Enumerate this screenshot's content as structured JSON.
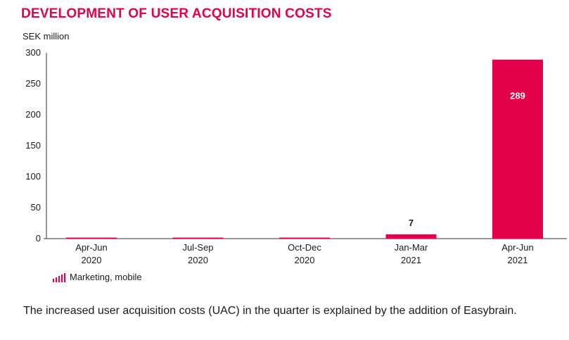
{
  "title": "DEVELOPMENT OF USER ACQUISITION COSTS",
  "unit_label": "SEK million",
  "colors": {
    "accent": "#e5004b",
    "text": "#1a1a1a",
    "axis": "#333333"
  },
  "legend": {
    "icon": "bar-chart-icon",
    "label": "Marketing, mobile"
  },
  "caption": "The increased user acquisition costs (UAC) in the quarter is explained by the addition of Easybrain.",
  "chart_data": {
    "type": "bar",
    "categories": [
      [
        "Apr-Jun",
        "2020"
      ],
      [
        "Jul-Sep",
        "2020"
      ],
      [
        "Oct-Dec",
        "2020"
      ],
      [
        "Jan-Mar",
        "2021"
      ],
      [
        "Apr-Jun",
        "2021"
      ]
    ],
    "series": [
      {
        "name": "Marketing, mobile",
        "values": [
          0,
          0,
          0,
          7,
          289
        ],
        "labels": [
          "",
          "",
          "",
          "7",
          "289"
        ]
      }
    ],
    "ylabel": "SEK million",
    "ylim": [
      0,
      300
    ],
    "yticks": [
      0,
      50,
      100,
      150,
      200,
      250,
      300
    ],
    "grid": false,
    "legend_position": "bottom-left"
  }
}
